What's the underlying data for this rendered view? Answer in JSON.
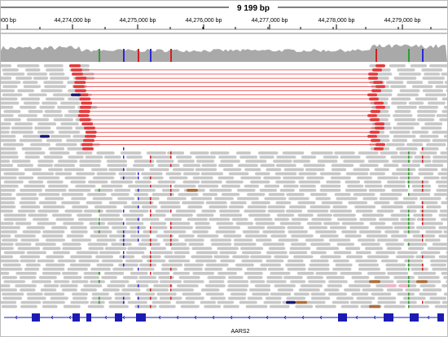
{
  "ruler": {
    "span_label": "9 199 bp",
    "ticks": [
      "000 bp",
      "44,274,000 bp",
      "44,275,000 bp",
      "44,276,000 bp",
      "44,277,000 bp",
      "44,278,000 bp",
      "44,279,000 bp"
    ]
  },
  "gene_track": {
    "gene_name": "AARS2"
  },
  "colors": {
    "read": "#c8c8c8",
    "discordant_read": "#e8393b",
    "split_line": "#e8393b",
    "coverage": "#a9a9a9",
    "gene": "#1c1cb4",
    "mismatch_a": "#2e9e2e",
    "mismatch_c": "#2a2ad6",
    "mismatch_g": "#c8a020",
    "mismatch_t": "#d02020"
  }
}
